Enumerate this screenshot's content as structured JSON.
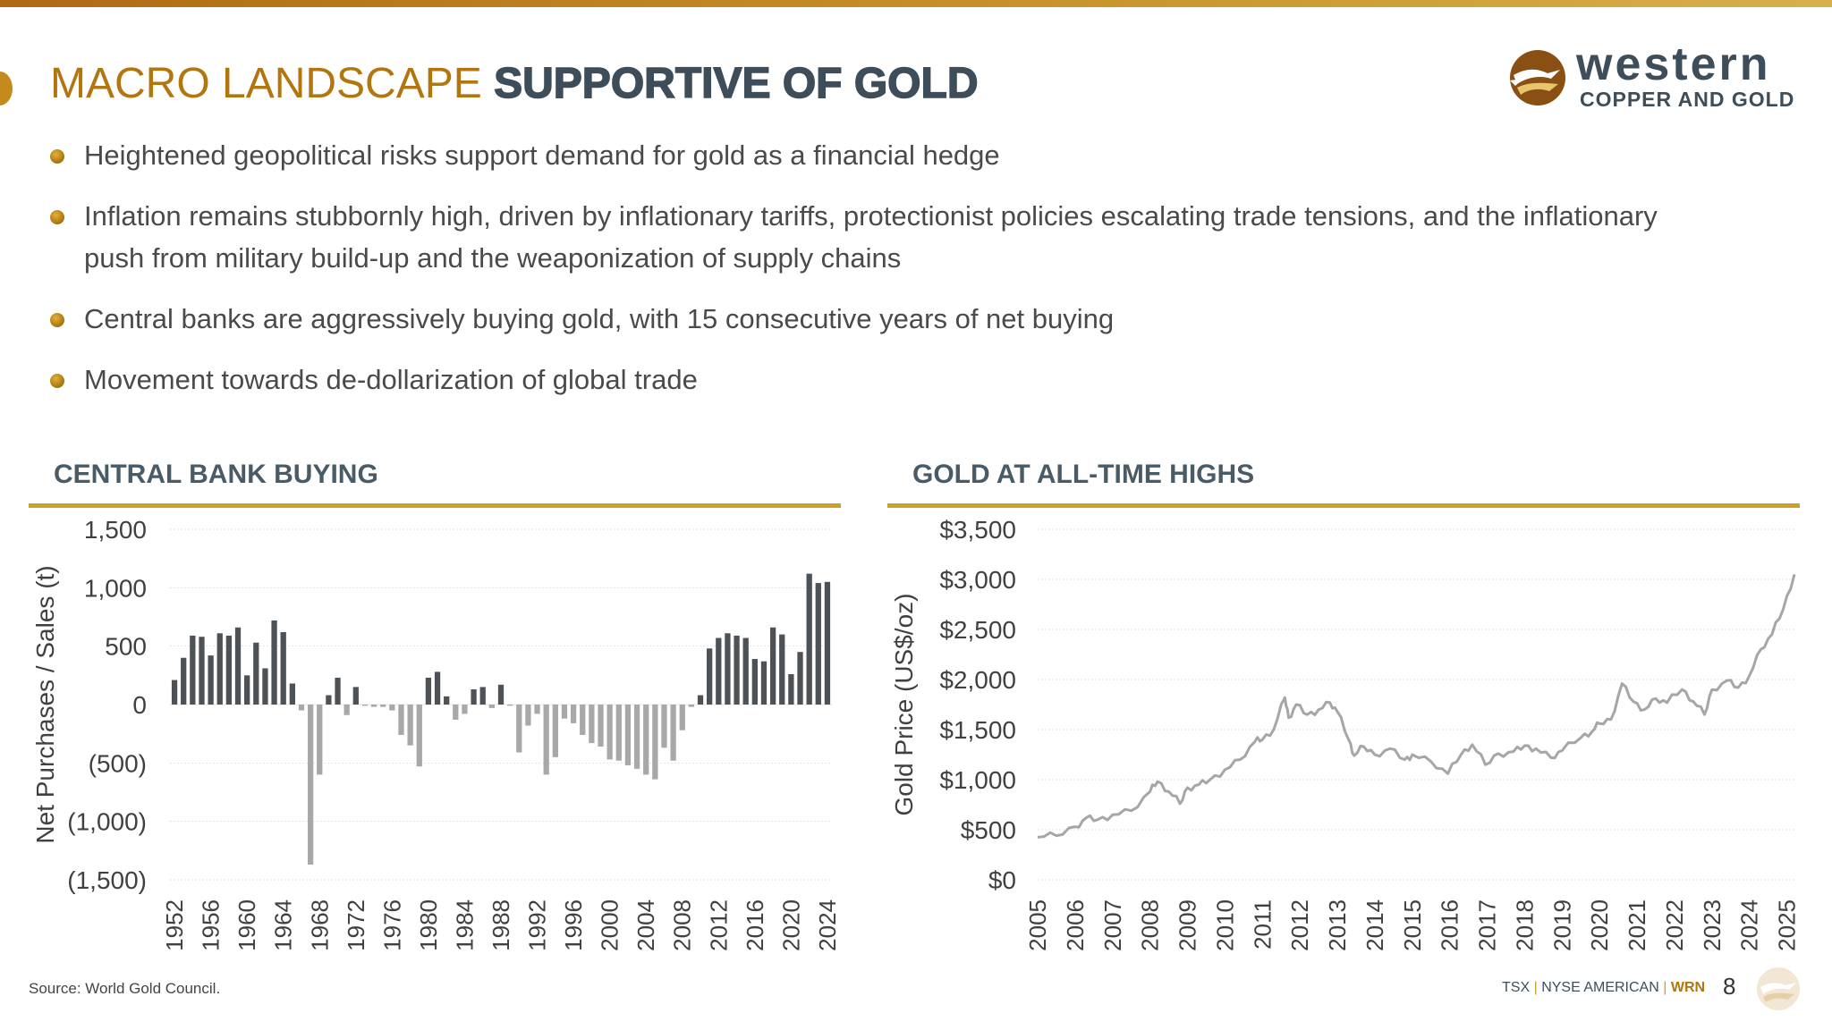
{
  "header": {
    "title_part1": "MACRO LANDSCAPE ",
    "title_part2": "SUPPORTIVE OF GOLD"
  },
  "logo": {
    "name": "western",
    "tagline": "COPPER AND GOLD"
  },
  "bullets": [
    "Heightened geopolitical risks support demand for gold as a financial hedge",
    "Inflation remains stubbornly high, driven by inflationary tariffs, protectionist policies escalating trade tensions, and the inflationary push from military build-up and the weaponization of supply chains",
    "Central banks are aggressively buying gold, with 15 consecutive years of net buying",
    "Movement towards de-dollarization of global trade"
  ],
  "footer": {
    "source": "Source: World Gold Council.",
    "exchanges_1": "TSX",
    "separator": "|",
    "exchanges_2": "NYSE AMERICAN",
    "ticker": "WRN",
    "page_number": "8"
  },
  "colors": {
    "accent_gold": "#c9a227",
    "title_orange": "#b3760e",
    "slate": "#3e4d5a",
    "bar_positive": "#4d5257",
    "bar_negative": "#a8a8a8",
    "line": "#a6a6a6"
  },
  "chart_data": [
    {
      "type": "bar",
      "title": "CENTRAL BANK BUYING",
      "ylabel": "Net Purchases / Sales (t)",
      "xlabel": "",
      "ylim": [
        -1500,
        1500
      ],
      "yticks": [
        1500,
        1000,
        500,
        0,
        -500,
        -1000,
        -1500
      ],
      "ytick_labels": [
        "1,500",
        "1,000",
        "500",
        "0",
        "(500)",
        "(1,000)",
        "(1,500)"
      ],
      "categories": [
        1952,
        1953,
        1954,
        1955,
        1956,
        1957,
        1958,
        1959,
        1960,
        1961,
        1962,
        1963,
        1964,
        1965,
        1966,
        1967,
        1968,
        1969,
        1970,
        1971,
        1972,
        1973,
        1974,
        1975,
        1976,
        1977,
        1978,
        1979,
        1980,
        1981,
        1982,
        1983,
        1984,
        1985,
        1986,
        1987,
        1988,
        1989,
        1990,
        1991,
        1992,
        1993,
        1994,
        1995,
        1996,
        1997,
        1998,
        1999,
        2000,
        2001,
        2002,
        2003,
        2004,
        2005,
        2006,
        2007,
        2008,
        2009,
        2010,
        2011,
        2012,
        2013,
        2014,
        2015,
        2016,
        2017,
        2018,
        2019,
        2020,
        2021,
        2022,
        2023,
        2024
      ],
      "values": [
        210,
        400,
        590,
        580,
        420,
        610,
        590,
        660,
        250,
        530,
        310,
        720,
        620,
        180,
        -50,
        -1370,
        -600,
        80,
        230,
        -90,
        150,
        -10,
        -20,
        -20,
        -50,
        -260,
        -350,
        -530,
        230,
        280,
        70,
        -130,
        -80,
        130,
        150,
        -30,
        170,
        -10,
        -410,
        -180,
        -80,
        -600,
        -450,
        -120,
        -160,
        -260,
        -330,
        -360,
        -470,
        -480,
        -520,
        -550,
        -600,
        -640,
        -370,
        -480,
        -220,
        -20,
        80,
        480,
        570,
        610,
        590,
        570,
        390,
        370,
        660,
        600,
        260,
        450,
        1120,
        1040,
        1050
      ],
      "xtick_labels": [
        "1952",
        "1956",
        "1960",
        "1964",
        "1968",
        "1972",
        "1976",
        "1980",
        "1984",
        "1988",
        "1992",
        "1996",
        "2000",
        "2004",
        "2008",
        "2012",
        "2016",
        "2020",
        "2024"
      ]
    },
    {
      "type": "line",
      "title": "GOLD AT ALL-TIME HIGHS",
      "ylabel": "Gold Price (US$/oz)",
      "xlabel": "",
      "ylim": [
        0,
        3500
      ],
      "yticks": [
        3500,
        3000,
        2500,
        2000,
        1500,
        1000,
        500,
        0
      ],
      "ytick_labels": [
        "$3,500",
        "$3,000",
        "$2,500",
        "$2,000",
        "$1,500",
        "$1,000",
        "$500",
        "$0"
      ],
      "xlim": [
        2005,
        2025.2
      ],
      "xtick_labels": [
        "2005",
        "2006",
        "2007",
        "2008",
        "2009",
        "2010",
        "2011",
        "2012",
        "2013",
        "2014",
        "2015",
        "2016",
        "2017",
        "2018",
        "2019",
        "2020",
        "2021",
        "2022",
        "2023",
        "2024",
        "2025"
      ],
      "x": [
        2005.0,
        2005.5,
        2006.0,
        2006.3,
        2006.6,
        2007.0,
        2007.5,
        2008.0,
        2008.2,
        2008.5,
        2008.8,
        2009.0,
        2009.3,
        2009.6,
        2010.0,
        2010.4,
        2010.8,
        2011.0,
        2011.3,
        2011.6,
        2011.7,
        2011.9,
        2012.2,
        2012.5,
        2012.8,
        2013.0,
        2013.3,
        2013.45,
        2013.7,
        2014.0,
        2014.4,
        2014.8,
        2015.0,
        2015.5,
        2015.95,
        2016.3,
        2016.6,
        2016.95,
        2017.3,
        2017.7,
        2018.0,
        2018.3,
        2018.7,
        2019.0,
        2019.5,
        2019.8,
        2020.0,
        2020.3,
        2020.6,
        2020.9,
        2021.2,
        2021.5,
        2021.8,
        2022.2,
        2022.5,
        2022.8,
        2023.0,
        2023.4,
        2023.7,
        2024.0,
        2024.3,
        2024.6,
        2024.9,
        2025.2
      ],
      "y": [
        425,
        440,
        530,
        620,
        600,
        650,
        690,
        880,
        980,
        880,
        760,
        920,
        950,
        1000,
        1100,
        1200,
        1380,
        1400,
        1500,
        1820,
        1620,
        1750,
        1650,
        1700,
        1770,
        1680,
        1400,
        1240,
        1330,
        1250,
        1310,
        1200,
        1250,
        1180,
        1060,
        1250,
        1350,
        1150,
        1260,
        1280,
        1340,
        1310,
        1220,
        1290,
        1420,
        1480,
        1560,
        1600,
        1960,
        1780,
        1700,
        1810,
        1770,
        1900,
        1780,
        1650,
        1900,
        1990,
        1920,
        2040,
        2300,
        2450,
        2700,
        3050
      ]
    }
  ]
}
